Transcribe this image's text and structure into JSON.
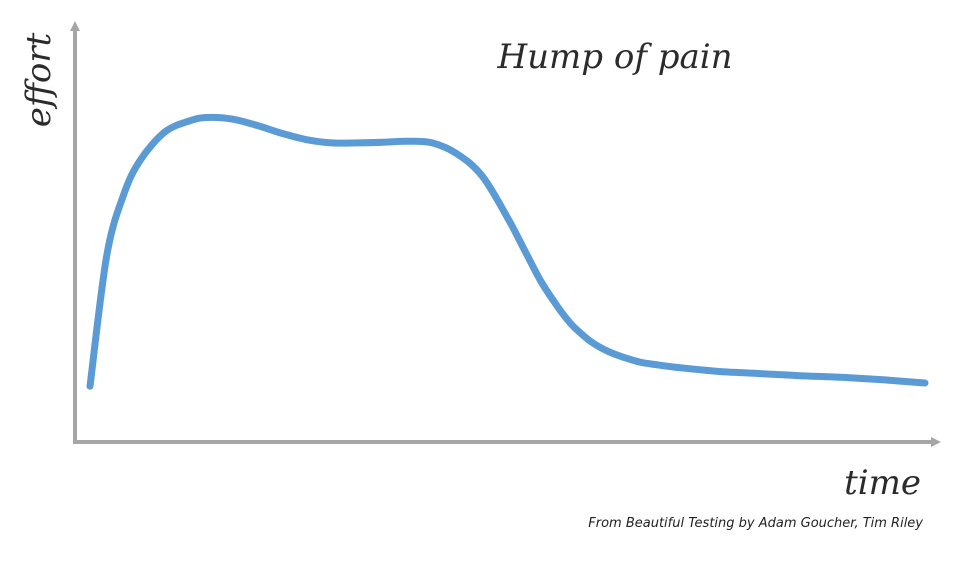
{
  "chart_data": {
    "type": "line",
    "title": "Hump of pain",
    "xlabel": "time",
    "ylabel": "effort",
    "caption": "From Beautiful Testing by Adam Goucher, Tim Riley",
    "xlim": [
      0,
      100
    ],
    "ylim": [
      0,
      100
    ],
    "grid": false,
    "axis_ticks": false,
    "series_color": "#5b9bd5",
    "axis_color": "#a6a6a6",
    "x": [
      0,
      2,
      4,
      6,
      9,
      12,
      14,
      17,
      20,
      23,
      26,
      29,
      32,
      35,
      38,
      41,
      44,
      47,
      50,
      52,
      54,
      56,
      57,
      58,
      60,
      62,
      64,
      66,
      68,
      70,
      73,
      76,
      80,
      85,
      90,
      95,
      100
    ],
    "y": [
      10,
      51,
      70,
      81,
      90,
      93.5,
      94.5,
      94,
      92,
      89.5,
      87.5,
      86.5,
      86.5,
      86.7,
      87,
      86.5,
      83,
      76,
      63,
      53,
      43,
      35,
      31.5,
      28.5,
      24,
      21,
      19,
      17.5,
      16.7,
      16,
      15.2,
      14.5,
      14,
      13.3,
      12.8,
      12,
      11
    ]
  }
}
